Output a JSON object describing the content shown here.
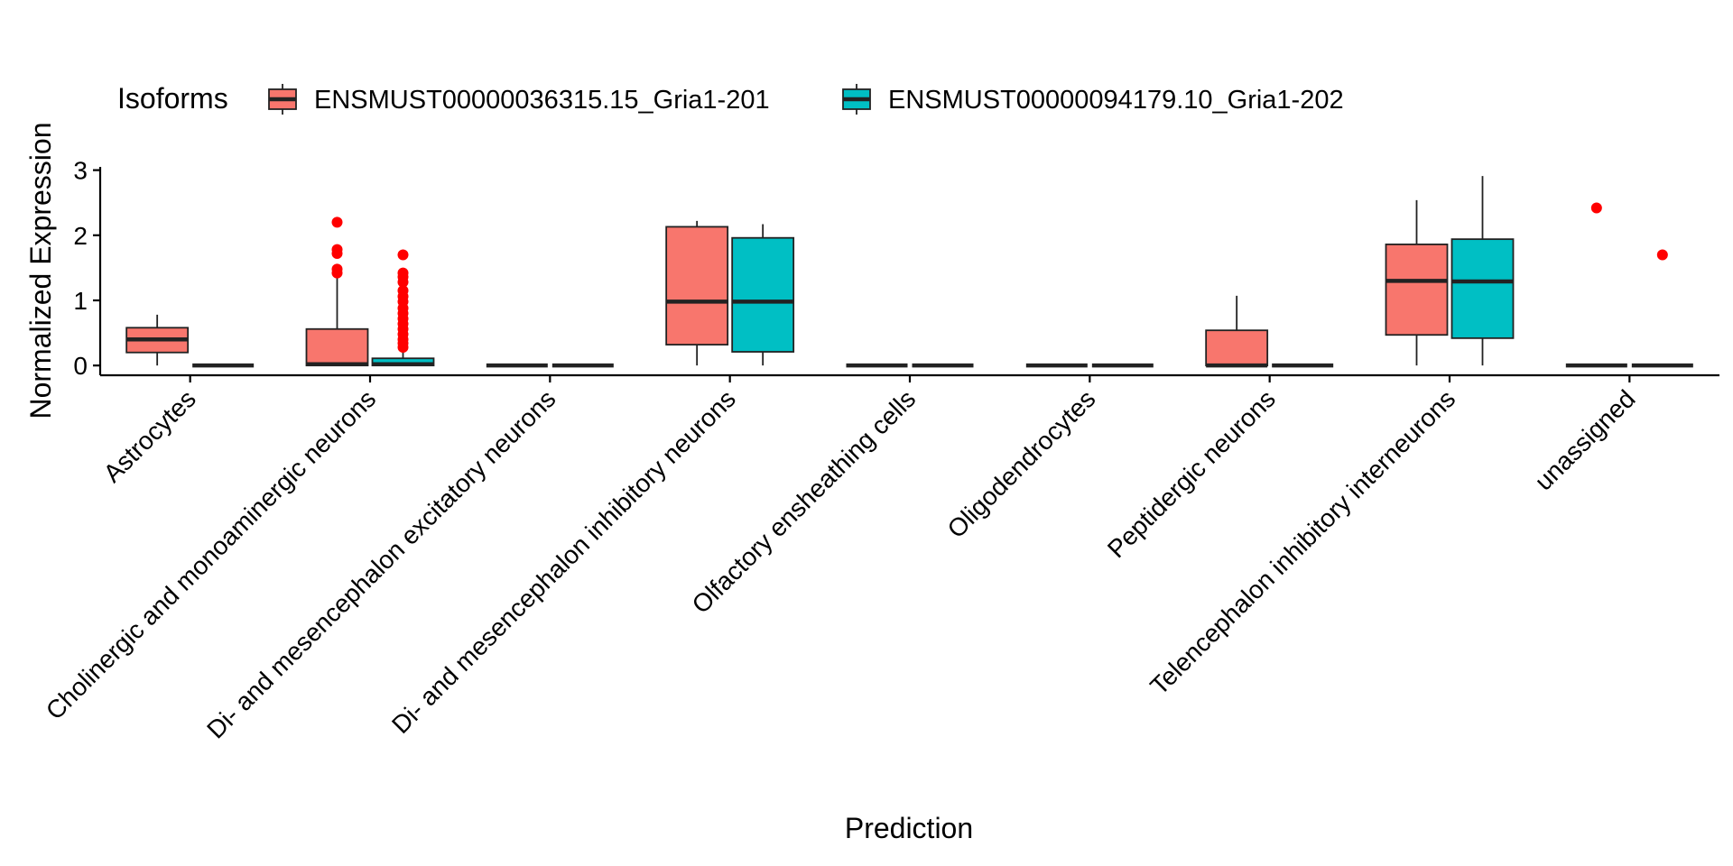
{
  "chart_data": {
    "type": "boxplot",
    "title": "",
    "xlabel": "Prediction",
    "ylabel": "Normalized Expression",
    "ylim": [
      -0.15,
      3.05
    ],
    "yticks": [
      0,
      1,
      2,
      3
    ],
    "grid": false,
    "legend": {
      "title": "Isoforms",
      "position": "top-left",
      "entries": [
        {
          "name": "ENSMUST00000036315.15_Gria1-201",
          "color": "#F8766D"
        },
        {
          "name": "ENSMUST00000094179.10_Gria1-202",
          "color": "#00BFC4"
        }
      ]
    },
    "categories": [
      "Astrocytes",
      "Cholinergic and monoaminergic neurons",
      "Di- and mesencephalon excitatory neurons",
      "Di- and mesencephalon inhibitory neurons",
      "Olfactory ensheathing cells",
      "Oligodendrocytes",
      "Peptidergic neurons",
      "Telencephalon inhibitory interneurons",
      "unassigned"
    ],
    "series": [
      {
        "name": "ENSMUST00000036315.15_Gria1-201",
        "color": "#F8766D",
        "boxes": [
          {
            "min": 0.0,
            "q1": 0.2,
            "median": 0.4,
            "q3": 0.58,
            "max": 0.78,
            "outliers": []
          },
          {
            "min": 0.0,
            "q1": 0.0,
            "median": 0.02,
            "q3": 0.56,
            "max": 1.38,
            "outliers": [
              1.42,
              1.48,
              1.72,
              1.78,
              2.2
            ]
          },
          {
            "min": 0.0,
            "q1": 0.0,
            "median": 0.0,
            "q3": 0.0,
            "max": 0.0,
            "outliers": []
          },
          {
            "min": 0.0,
            "q1": 0.32,
            "median": 0.98,
            "q3": 2.13,
            "max": 2.22,
            "outliers": []
          },
          {
            "min": 0.0,
            "q1": 0.0,
            "median": 0.0,
            "q3": 0.0,
            "max": 0.0,
            "outliers": []
          },
          {
            "min": 0.0,
            "q1": 0.0,
            "median": 0.0,
            "q3": 0.0,
            "max": 0.0,
            "outliers": []
          },
          {
            "min": 0.0,
            "q1": 0.0,
            "median": 0.0,
            "q3": 0.54,
            "max": 1.07,
            "outliers": []
          },
          {
            "min": 0.0,
            "q1": 0.47,
            "median": 1.3,
            "q3": 1.86,
            "max": 2.54,
            "outliers": []
          },
          {
            "min": 0.0,
            "q1": 0.0,
            "median": 0.0,
            "q3": 0.0,
            "max": 0.0,
            "outliers": [
              2.42
            ]
          }
        ]
      },
      {
        "name": "ENSMUST00000094179.10_Gria1-202",
        "color": "#00BFC4",
        "boxes": [
          {
            "min": 0.0,
            "q1": 0.0,
            "median": 0.0,
            "q3": 0.0,
            "max": 0.0,
            "outliers": []
          },
          {
            "min": 0.0,
            "q1": 0.0,
            "median": 0.02,
            "q3": 0.11,
            "max": 0.24,
            "outliers": [
              0.28,
              0.34,
              0.4,
              0.48,
              0.56,
              0.64,
              0.72,
              0.8,
              0.88,
              0.98,
              1.06,
              1.15,
              1.28,
              1.36,
              1.42,
              1.7
            ]
          },
          {
            "min": 0.0,
            "q1": 0.0,
            "median": 0.0,
            "q3": 0.0,
            "max": 0.0,
            "outliers": []
          },
          {
            "min": 0.0,
            "q1": 0.21,
            "median": 0.98,
            "q3": 1.96,
            "max": 2.17,
            "outliers": []
          },
          {
            "min": 0.0,
            "q1": 0.0,
            "median": 0.0,
            "q3": 0.0,
            "max": 0.0,
            "outliers": []
          },
          {
            "min": 0.0,
            "q1": 0.0,
            "median": 0.0,
            "q3": 0.0,
            "max": 0.0,
            "outliers": []
          },
          {
            "min": 0.0,
            "q1": 0.0,
            "median": 0.0,
            "q3": 0.0,
            "max": 0.0,
            "outliers": []
          },
          {
            "min": 0.0,
            "q1": 0.42,
            "median": 1.29,
            "q3": 1.94,
            "max": 2.91,
            "outliers": []
          },
          {
            "min": 0.0,
            "q1": 0.0,
            "median": 0.0,
            "q3": 0.0,
            "max": 0.0,
            "outliers": [
              1.7
            ]
          }
        ]
      }
    ],
    "outlier_color": "#FF0000"
  }
}
